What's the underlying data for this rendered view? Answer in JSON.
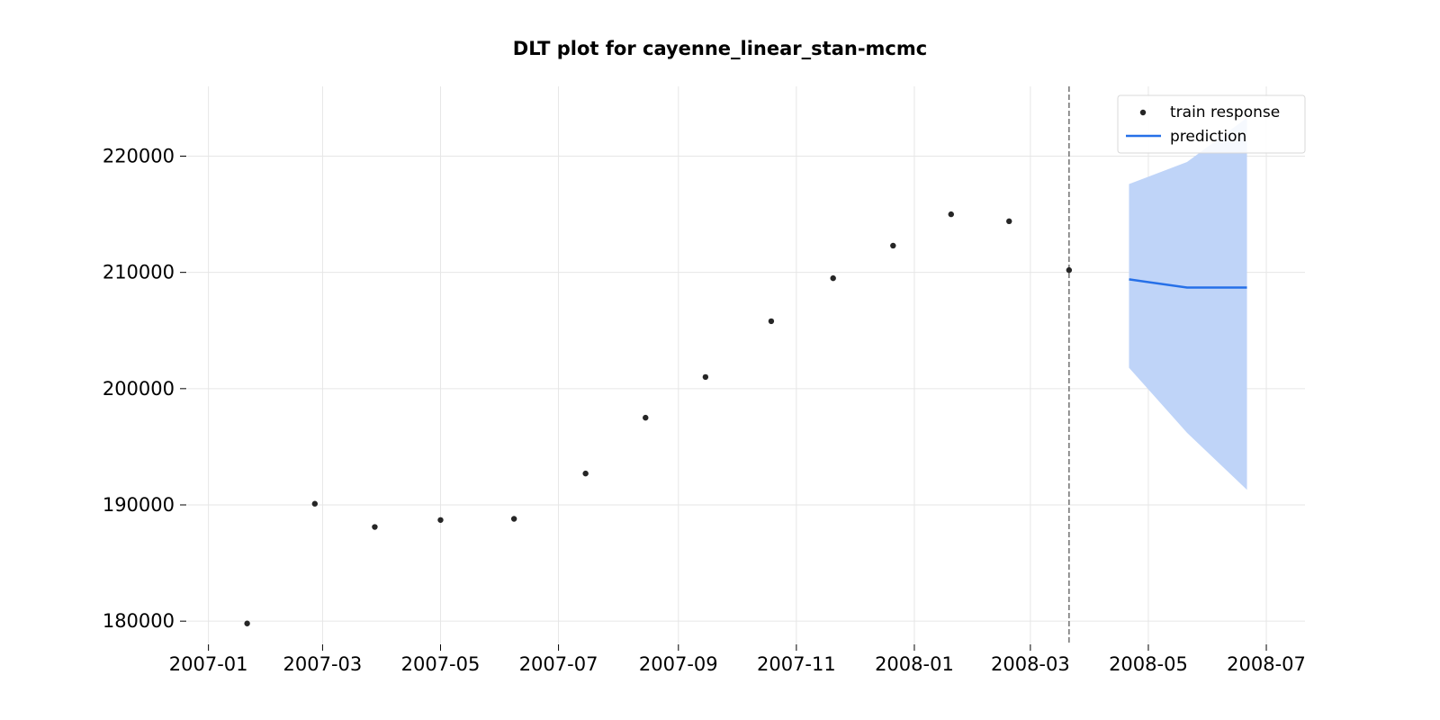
{
  "chart_data": {
    "type": "line",
    "title": "DLT plot for cayenne_linear_stan-mcmc",
    "xlabel": "",
    "ylabel": "",
    "x_type": "date",
    "xlim": [
      "2006-12-21",
      "2008-07-21"
    ],
    "ylim": [
      178000,
      226000
    ],
    "grid": true,
    "legend_position": "top-right",
    "x_ticks": [
      "2007-01-01",
      "2007-03-01",
      "2007-05-01",
      "2007-07-01",
      "2007-09-01",
      "2007-11-01",
      "2008-01-01",
      "2008-03-01",
      "2008-05-01",
      "2008-07-01"
    ],
    "x_tick_labels": [
      "2007-01",
      "2007-03",
      "2007-05",
      "2007-07",
      "2007-09",
      "2007-11",
      "2008-01",
      "2008-03",
      "2008-05",
      "2008-07"
    ],
    "y_ticks": [
      180000,
      190000,
      200000,
      210000,
      220000
    ],
    "y_tick_labels": [
      "180000",
      "190000",
      "200000",
      "210000",
      "220000"
    ],
    "train_cutoff": "2008-03-21",
    "series": [
      {
        "name": "train response",
        "kind": "scatter",
        "color": "#262626",
        "points": [
          {
            "x": "2007-01-21",
            "y": 179800
          },
          {
            "x": "2007-02-25",
            "y": 190100
          },
          {
            "x": "2007-03-28",
            "y": 188100
          },
          {
            "x": "2007-05-01",
            "y": 188700
          },
          {
            "x": "2007-06-08",
            "y": 188800
          },
          {
            "x": "2007-07-15",
            "y": 192700
          },
          {
            "x": "2007-08-15",
            "y": 197500
          },
          {
            "x": "2007-09-15",
            "y": 201000
          },
          {
            "x": "2007-10-19",
            "y": 205800
          },
          {
            "x": "2007-11-20",
            "y": 209500
          },
          {
            "x": "2007-12-21",
            "y": 212300
          },
          {
            "x": "2008-01-20",
            "y": 215000
          },
          {
            "x": "2008-02-19",
            "y": 214400
          },
          {
            "x": "2008-03-21",
            "y": 210200
          }
        ]
      },
      {
        "name": "prediction",
        "kind": "line",
        "color": "#2670e8",
        "points": [
          {
            "x": "2008-04-21",
            "y": 209400
          },
          {
            "x": "2008-05-21",
            "y": 208700
          },
          {
            "x": "2008-06-21",
            "y": 208700
          }
        ],
        "band": {
          "color": "#bfd4f8",
          "lower": [
            201800,
            196200,
            191300
          ],
          "upper": [
            217600,
            219500,
            223300
          ]
        }
      }
    ]
  }
}
